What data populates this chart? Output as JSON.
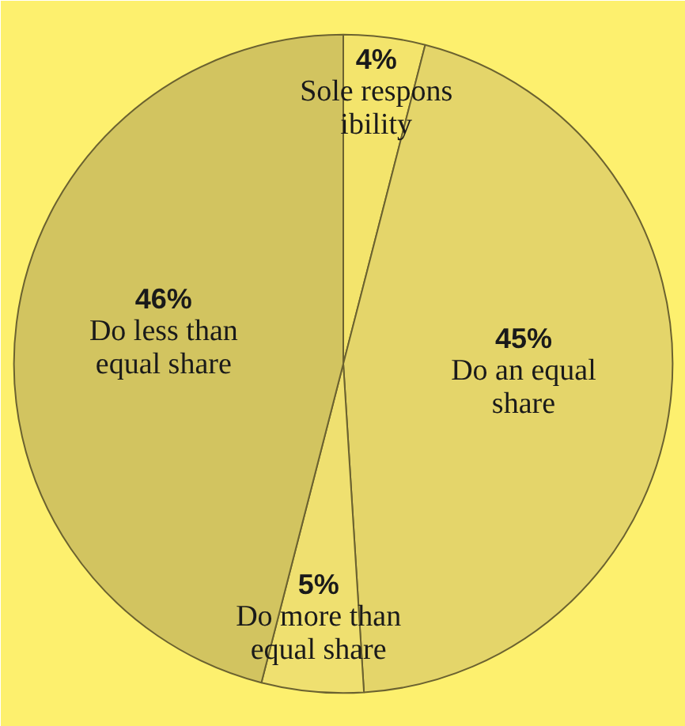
{
  "chart_data": {
    "type": "pie",
    "categories": [
      "Sole responsibility",
      "Do an equal share",
      "Do more than equal share",
      "Do less than equal share"
    ],
    "values": [
      4,
      45,
      5,
      46
    ],
    "value_labels": [
      "4%",
      "45%",
      "5%",
      "46%"
    ],
    "colors": [
      "#f3e46c",
      "#e4d56a",
      "#efe070",
      "#d2c460"
    ]
  }
}
